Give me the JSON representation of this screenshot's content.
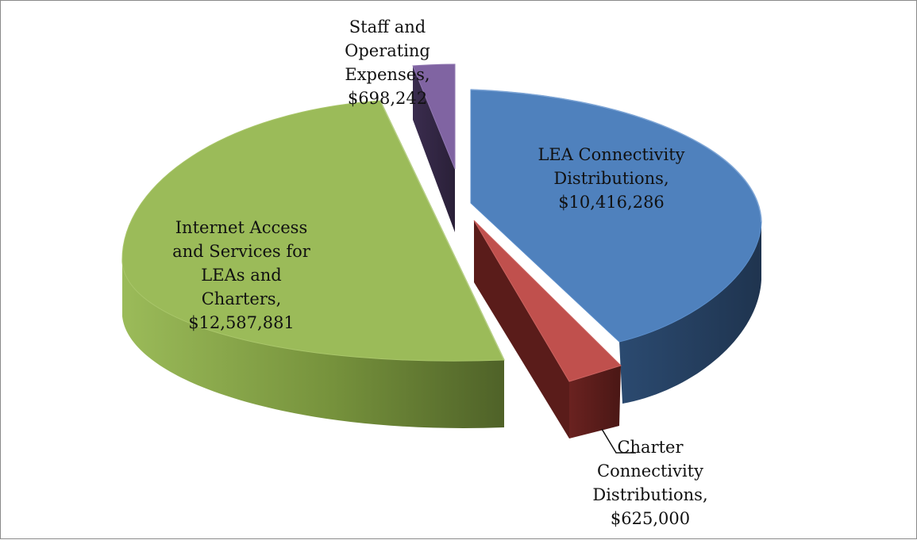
{
  "chart_data": {
    "type": "pie",
    "style": "3d-exploded",
    "title": "",
    "slices": [
      {
        "name": "LEA Connectivity Distributions",
        "value": 10416286,
        "label_lines": [
          "LEA Connectivity",
          "Distributions,",
          "$10,416,286"
        ],
        "color": "#4F81BD"
      },
      {
        "name": "Charter Connectivity Distributions",
        "value": 625000,
        "label_lines": [
          "Charter",
          "Connectivity",
          "Distributions,",
          "$625,000"
        ],
        "color": "#C0504D"
      },
      {
        "name": "Internet Access and Services for LEAs and Charters",
        "value": 12587881,
        "label_lines": [
          "Internet Access",
          "and Services for",
          "LEAs and",
          "Charters,",
          "$12,587,881"
        ],
        "color": "#9BBB59"
      },
      {
        "name": "Staff and Operating Expenses",
        "value": 698242,
        "label_lines": [
          "Staff and",
          "Operating",
          "Expenses,",
          "$698,242"
        ],
        "color": "#8064A2"
      }
    ]
  }
}
